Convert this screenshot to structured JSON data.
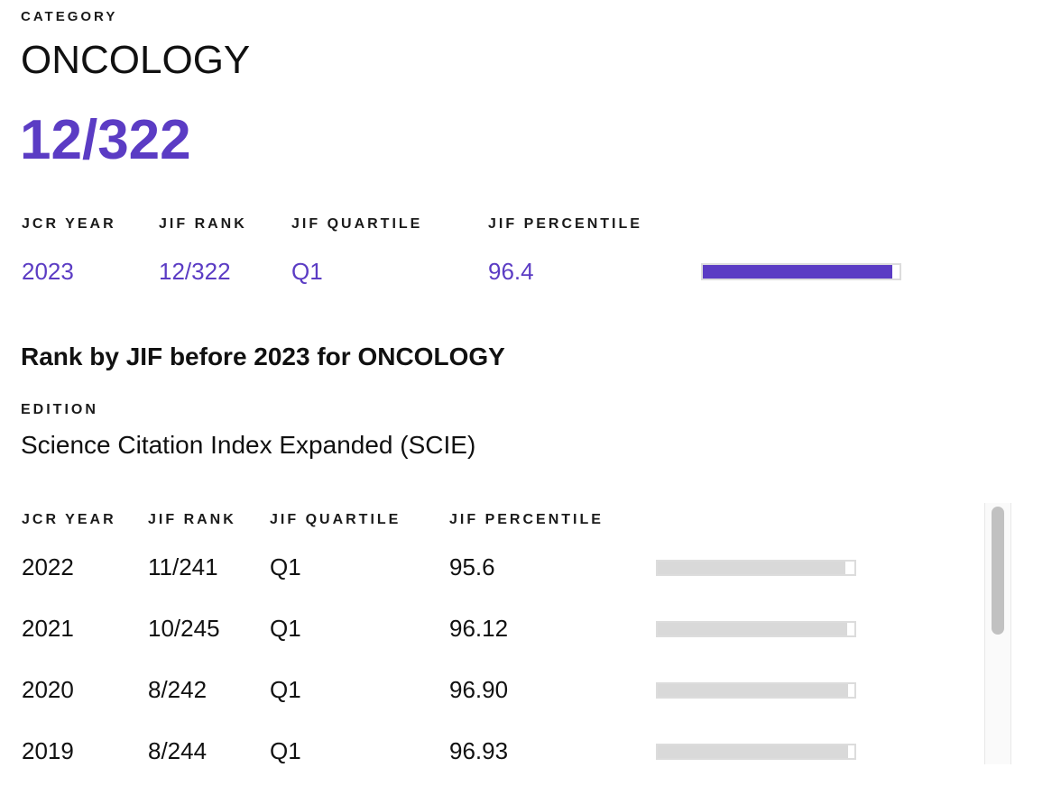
{
  "category": {
    "label": "CATEGORY",
    "name": "ONCOLOGY",
    "rank": "12/322"
  },
  "current": {
    "headers": {
      "year": "JCR YEAR",
      "rank": "JIF RANK",
      "quartile": "JIF QUARTILE",
      "percentile": "JIF PERCENTILE"
    },
    "year": "2023",
    "rank": "12/322",
    "quartile": "Q1",
    "percentile": "96.4",
    "percentile_value": 96.4
  },
  "history": {
    "heading": "Rank by JIF before 2023 for ONCOLOGY",
    "edition_label": "EDITION",
    "edition": "Science Citation Index Expanded (SCIE)",
    "headers": {
      "year": "JCR YEAR",
      "rank": "JIF RANK",
      "quartile": "JIF QUARTILE",
      "percentile": "JIF PERCENTILE"
    },
    "rows": [
      {
        "year": "2022",
        "rank": "11/241",
        "quartile": "Q1",
        "percentile": "95.6",
        "percentile_value": 95.6
      },
      {
        "year": "2021",
        "rank": "10/245",
        "quartile": "Q1",
        "percentile": "96.12",
        "percentile_value": 96.12
      },
      {
        "year": "2020",
        "rank": "8/242",
        "quartile": "Q1",
        "percentile": "96.90",
        "percentile_value": 96.9
      },
      {
        "year": "2019",
        "rank": "8/244",
        "quartile": "Q1",
        "percentile": "96.93",
        "percentile_value": 96.93
      }
    ]
  },
  "colors": {
    "accent": "#5b3cc4",
    "bar_gray": "#d9d9d9",
    "bar_border": "#dcdcdc"
  }
}
